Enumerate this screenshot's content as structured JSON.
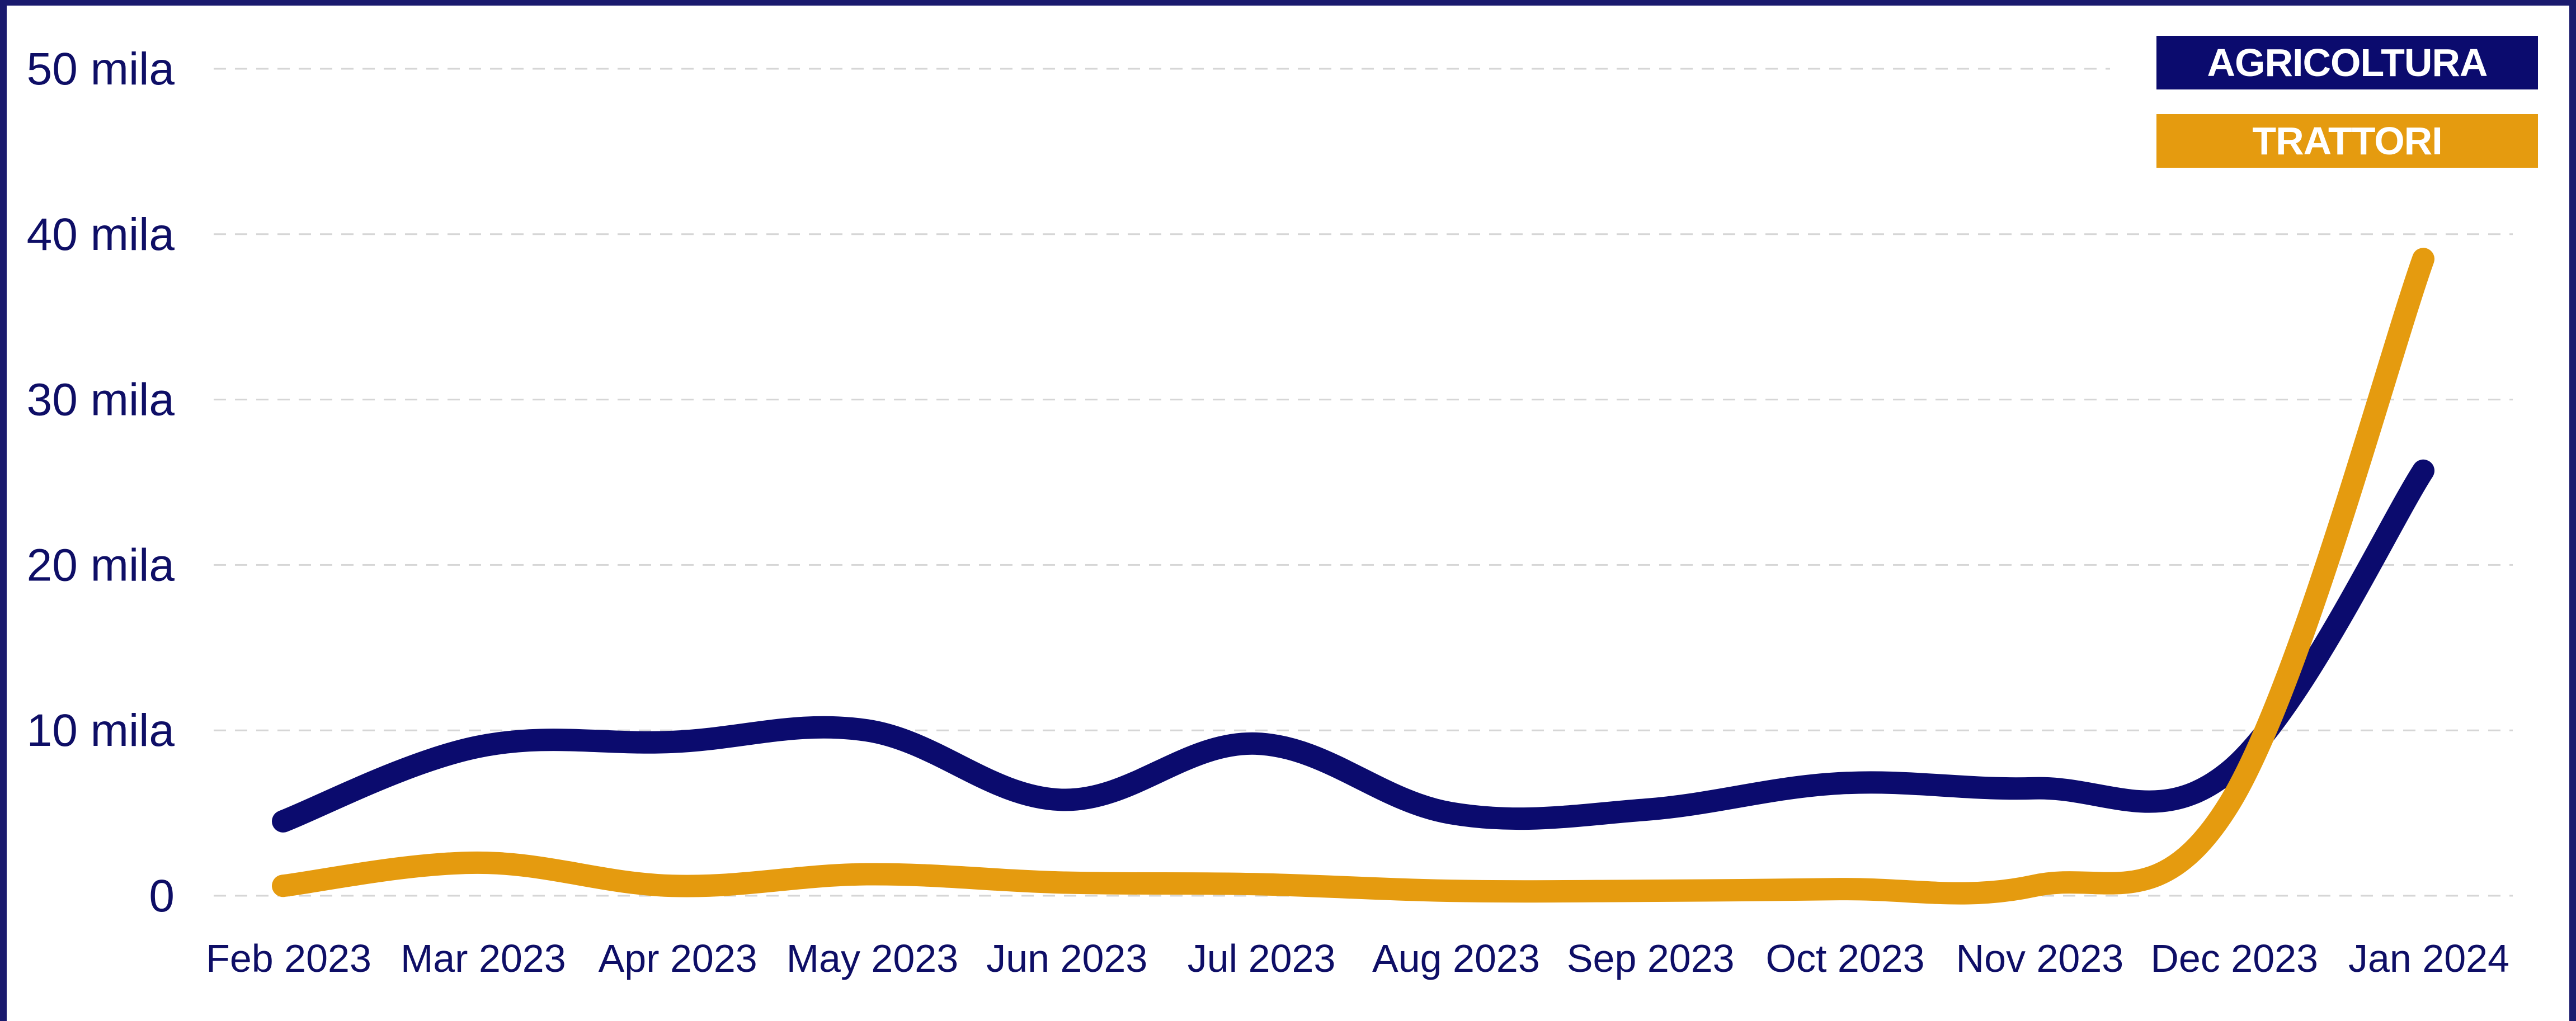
{
  "chart_data": {
    "type": "line",
    "categories": [
      "Feb 2023",
      "Mar 2023",
      "Apr 2023",
      "May 2023",
      "Jun 2023",
      "Jul 2023",
      "Aug 2023",
      "Sep 2023",
      "Oct 2023",
      "Nov 2023",
      "Dec 2023",
      "Jan 2024"
    ],
    "y_ticks": [
      "0",
      "10 mila",
      "20 mila",
      "30 mila",
      "40 mila",
      "50 mila"
    ],
    "ylim": [
      0,
      50000
    ],
    "grid": true,
    "legend_position": "top-right",
    "series": [
      {
        "name": "AGRICOLTURA",
        "color": "#0b0b6e",
        "values": [
          4500,
          9000,
          9300,
          10000,
          5800,
          9200,
          5000,
          5200,
          6800,
          6500,
          7500,
          25700
        ]
      },
      {
        "name": "TRATTORI",
        "color": "#e59b0f",
        "values": [
          600,
          2000,
          600,
          1300,
          800,
          700,
          300,
          300,
          400,
          600,
          5500,
          38500
        ]
      }
    ]
  }
}
